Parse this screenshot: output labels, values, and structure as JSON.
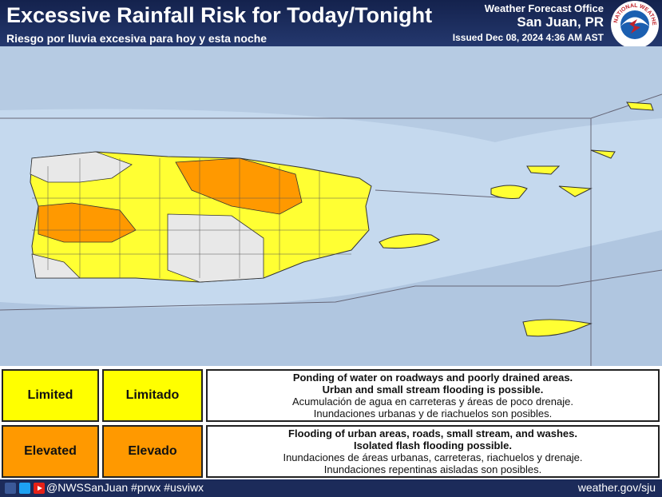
{
  "header": {
    "title": "Excessive Rainfall Risk for Today/Tonight",
    "subtitle": "Riesgo por lluvia excesiva para hoy y esta noche",
    "office": "Weather Forecast Office",
    "location": "San Juan, PR",
    "issued": "Issued Dec 08, 2024 4:36 AM AST",
    "logo_text": "NATIONAL WEATHER SERVICE"
  },
  "legend": {
    "rows": [
      {
        "english": "Limited",
        "spanish": "Limitado",
        "color": "#ffff00",
        "lines": [
          "Ponding of water on roadways and poorly drained areas.",
          "Urban and small stream flooding is possible.",
          "Acumulación de agua en carreteras y áreas de poco drenaje.",
          "Inundaciones urbanas y de riachuelos son posibles."
        ]
      },
      {
        "english": "Elevated",
        "spanish": "Elevado",
        "color": "#ff9900",
        "lines": [
          "Flooding of urban areas, roads, small stream, and washes.",
          "Isolated flash flooding possible.",
          "Inundaciones de áreas urbanas, carreteras, riachuelos y drenaje.",
          "Inundaciones repentinas aisladas son posibles."
        ]
      }
    ]
  },
  "footer": {
    "handle": "@NWSSanJuan #prwx #usviwx",
    "url": "weather.gov/sju"
  }
}
